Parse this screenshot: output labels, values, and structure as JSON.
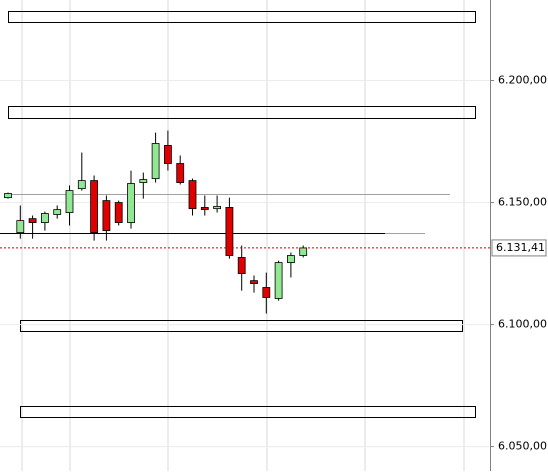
{
  "chart_data": {
    "type": "candlestick",
    "open": [
      6152.0,
      6137.7,
      6143.4,
      6141.8,
      6145.1,
      6145.9,
      6155.7,
      6159.0,
      6150.8,
      6150.0,
      6141.8,
      6158.2,
      6159.8,
      6173.4,
      6166.0,
      6159.0,
      6148.0,
      6147.5,
      6148.0,
      6127.5,
      6118.0,
      6115.2,
      6110.7,
      6125.4,
      6128.3
    ],
    "high": [
      6154.1,
      6148.8,
      6144.7,
      6146.3,
      6148.8,
      6157.0,
      6170.5,
      6161.1,
      6152.9,
      6150.8,
      6163.1,
      6162.3,
      6178.7,
      6179.5,
      6169.3,
      6159.8,
      6152.9,
      6152.9,
      6152.0,
      6132.4,
      6120.1,
      6121.3,
      6126.2,
      6129.5,
      6132.4
    ],
    "low": [
      6151.6,
      6135.2,
      6135.2,
      6138.5,
      6143.4,
      6140.6,
      6154.9,
      6134.4,
      6134.4,
      6140.6,
      6139.3,
      6151.6,
      6158.2,
      6163.1,
      6157.4,
      6144.7,
      6144.7,
      6145.9,
      6127.0,
      6113.9,
      6113.1,
      6104.5,
      6109.8,
      6119.3,
      6127.5
    ],
    "close": [
      6153.7,
      6142.6,
      6141.8,
      6145.5,
      6147.1,
      6154.9,
      6159.0,
      6137.7,
      6138.5,
      6141.8,
      6157.8,
      6159.4,
      6174.2,
      6166.0,
      6158.2,
      6147.5,
      6147.1,
      6148.4,
      6128.3,
      6120.9,
      6116.8,
      6111.1,
      6125.4,
      6128.3,
      6131.41
    ],
    "up_color": "#92e792",
    "down_color": "#e00000",
    "ylim": [
      6040,
      6233
    ],
    "yticks": [
      {
        "value": 6050,
        "label": "6.050,00"
      },
      {
        "value": 6100,
        "label": "6.100,00"
      },
      {
        "value": 6150,
        "label": "6.150,00"
      },
      {
        "value": 6200,
        "label": "6.200,00"
      }
    ],
    "grid": true,
    "current_price": {
      "value": 6131.41,
      "label": "6.131,41",
      "color": "#cc0000"
    }
  }
}
